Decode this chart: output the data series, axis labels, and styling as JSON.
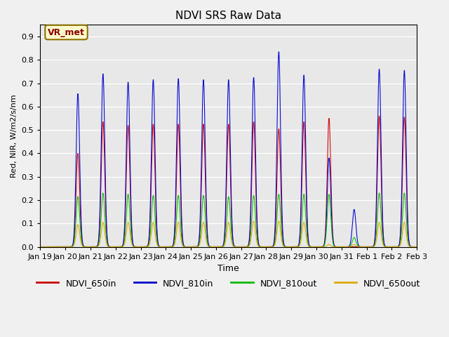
{
  "title": "NDVI SRS Raw Data",
  "ylabel": "Red, NIR, W/m2/s/nm",
  "xlabel": "Time",
  "ylim": [
    0.0,
    0.95
  ],
  "yticks": [
    0.0,
    0.1,
    0.2,
    0.3,
    0.4,
    0.5,
    0.6,
    0.7,
    0.8,
    0.9
  ],
  "background_color": "#f0f0f0",
  "plot_bg_color": "#e8e8e8",
  "legend_items": [
    {
      "label": "NDVI_650in",
      "color": "#cc0000"
    },
    {
      "label": "NDVI_810in",
      "color": "#0000cc"
    },
    {
      "label": "NDVI_810out",
      "color": "#00bb00"
    },
    {
      "label": "NDVI_650out",
      "color": "#ddaa00"
    }
  ],
  "annotation_text": "VR_met",
  "annotation_color": "#8b0000",
  "annotation_bg": "#ffffcc",
  "annotation_edge": "#8b7000",
  "xtick_labels": [
    "Jan 19",
    "Jan 20",
    "Jan 21",
    "Jan 22",
    "Jan 23",
    "Jan 24",
    "Jan 25",
    "Jan 26",
    "Jan 27",
    "Jan 28",
    "Jan 29",
    "Jan 30",
    "Jan 31",
    "Feb 1",
    "Feb 2",
    "Feb 3"
  ],
  "n_days": 15,
  "series": {
    "NDVI_650in": {
      "color": "#cc0000",
      "peaks": [
        {
          "day": 1.5,
          "val": 0.4
        },
        {
          "day": 2.5,
          "val": 0.535
        },
        {
          "day": 3.5,
          "val": 0.52
        },
        {
          "day": 4.5,
          "val": 0.525
        },
        {
          "day": 5.5,
          "val": 0.525
        },
        {
          "day": 6.5,
          "val": 0.525
        },
        {
          "day": 7.5,
          "val": 0.525
        },
        {
          "day": 8.5,
          "val": 0.535
        },
        {
          "day": 9.5,
          "val": 0.505
        },
        {
          "day": 10.5,
          "val": 0.535
        },
        {
          "day": 11.5,
          "val": 0.55
        },
        {
          "day": 12.5,
          "val": 0.0
        },
        {
          "day": 13.5,
          "val": 0.56
        },
        {
          "day": 14.5,
          "val": 0.555
        }
      ]
    },
    "NDVI_810in": {
      "color": "#0000cc",
      "peaks": [
        {
          "day": 1.5,
          "val": 0.655
        },
        {
          "day": 2.5,
          "val": 0.74
        },
        {
          "day": 3.5,
          "val": 0.705
        },
        {
          "day": 4.5,
          "val": 0.715
        },
        {
          "day": 5.5,
          "val": 0.72
        },
        {
          "day": 6.5,
          "val": 0.715
        },
        {
          "day": 7.5,
          "val": 0.715
        },
        {
          "day": 8.5,
          "val": 0.725
        },
        {
          "day": 9.5,
          "val": 0.835
        },
        {
          "day": 10.5,
          "val": 0.735
        },
        {
          "day": 11.5,
          "val": 0.38
        },
        {
          "day": 12.5,
          "val": 0.16
        },
        {
          "day": 13.5,
          "val": 0.76
        },
        {
          "day": 14.5,
          "val": 0.755
        }
      ]
    },
    "NDVI_810out": {
      "color": "#00bb00",
      "peaks": [
        {
          "day": 1.5,
          "val": 0.215
        },
        {
          "day": 2.5,
          "val": 0.23
        },
        {
          "day": 3.5,
          "val": 0.225
        },
        {
          "day": 4.5,
          "val": 0.22
        },
        {
          "day": 5.5,
          "val": 0.22
        },
        {
          "day": 6.5,
          "val": 0.22
        },
        {
          "day": 7.5,
          "val": 0.215
        },
        {
          "day": 8.5,
          "val": 0.22
        },
        {
          "day": 9.5,
          "val": 0.225
        },
        {
          "day": 10.5,
          "val": 0.225
        },
        {
          "day": 11.5,
          "val": 0.225
        },
        {
          "day": 12.5,
          "val": 0.04
        },
        {
          "day": 13.5,
          "val": 0.23
        },
        {
          "day": 14.5,
          "val": 0.23
        }
      ]
    },
    "NDVI_650out": {
      "color": "#ddaa00",
      "peaks": [
        {
          "day": 1.5,
          "val": 0.095
        },
        {
          "day": 2.5,
          "val": 0.105
        },
        {
          "day": 3.5,
          "val": 0.105
        },
        {
          "day": 4.5,
          "val": 0.105
        },
        {
          "day": 5.5,
          "val": 0.105
        },
        {
          "day": 6.5,
          "val": 0.105
        },
        {
          "day": 7.5,
          "val": 0.105
        },
        {
          "day": 8.5,
          "val": 0.11
        },
        {
          "day": 9.5,
          "val": 0.11
        },
        {
          "day": 10.5,
          "val": 0.105
        },
        {
          "day": 11.5,
          "val": 0.01
        },
        {
          "day": 12.5,
          "val": 0.01
        },
        {
          "day": 13.5,
          "val": 0.105
        },
        {
          "day": 14.5,
          "val": 0.105
        }
      ]
    }
  }
}
